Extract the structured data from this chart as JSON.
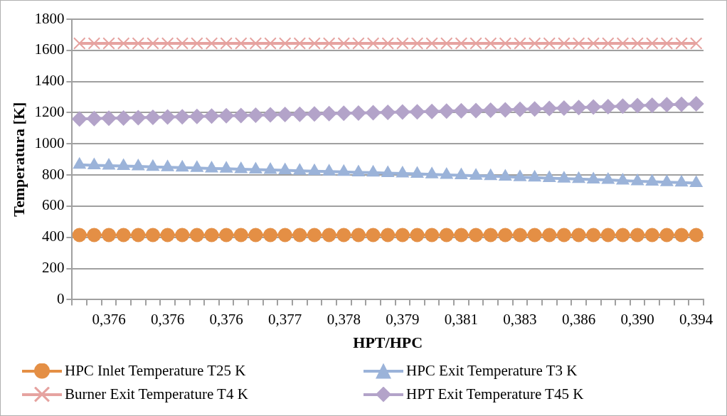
{
  "chart_data": {
    "type": "line",
    "xlabel": "HPT/HPC",
    "ylabel": "Temperatura [K]",
    "categories": [
      null,
      null,
      "0,376",
      null,
      null,
      null,
      "0,376",
      null,
      null,
      null,
      "0,376",
      null,
      null,
      null,
      "0,377",
      null,
      null,
      null,
      "0,378",
      null,
      null,
      null,
      "0,379",
      null,
      null,
      null,
      "0,381",
      null,
      null,
      null,
      "0,383",
      null,
      null,
      null,
      "0,386",
      null,
      null,
      null,
      "0,390",
      null,
      null,
      null,
      "0,394"
    ],
    "ylim": [
      0,
      1800
    ],
    "yticks": [
      0,
      200,
      400,
      600,
      800,
      1000,
      1200,
      1400,
      1600,
      1800
    ],
    "grid": "y",
    "legend": "bottom",
    "series": [
      {
        "name": "HPC Inlet Temperature T25 K",
        "color": "#e48f45",
        "marker": "circle",
        "values": [
          415,
          415,
          415,
          415,
          415,
          415,
          415,
          415,
          415,
          415,
          415,
          415,
          415,
          415,
          415,
          415,
          415,
          415,
          415,
          415,
          415,
          415,
          415,
          415,
          415,
          415,
          415,
          415,
          415,
          415,
          415,
          415,
          415,
          415,
          415,
          415,
          415,
          415,
          415,
          415,
          415,
          415,
          415
        ]
      },
      {
        "name": "HPC Exit Temperature T3 K",
        "color": "#9bb3d9",
        "marker": "triangle",
        "values": [
          865,
          862,
          860,
          857,
          855,
          852,
          850,
          847,
          845,
          842,
          840,
          837,
          835,
          832,
          830,
          827,
          825,
          822,
          820,
          817,
          815,
          812,
          810,
          807,
          804,
          801,
          798,
          795,
          792,
          789,
          786,
          783,
          780,
          777,
          774,
          771,
          768,
          764,
          760,
          757,
          754,
          751,
          748
        ]
      },
      {
        "name": "Burner Exit Temperature T4 K",
        "color": "#e6a3a0",
        "marker": "cross",
        "values": [
          1645,
          1645,
          1645,
          1645,
          1645,
          1645,
          1645,
          1645,
          1645,
          1645,
          1645,
          1645,
          1645,
          1645,
          1645,
          1645,
          1645,
          1645,
          1645,
          1645,
          1645,
          1645,
          1645,
          1645,
          1645,
          1645,
          1645,
          1645,
          1645,
          1645,
          1645,
          1645,
          1645,
          1645,
          1645,
          1645,
          1645,
          1645,
          1645,
          1645,
          1645,
          1645,
          1645
        ]
      },
      {
        "name": "HPT Exit Temperature T45 K",
        "color": "#b3a3c9",
        "marker": "diamond",
        "values": [
          1160,
          1162,
          1164,
          1166,
          1168,
          1170,
          1172,
          1174,
          1176,
          1178,
          1180,
          1182,
          1184,
          1186,
          1188,
          1190,
          1192,
          1194,
          1196,
          1198,
          1200,
          1202,
          1204,
          1206,
          1208,
          1210,
          1212,
          1214,
          1216,
          1218,
          1221,
          1224,
          1227,
          1230,
          1233,
          1236,
          1239,
          1242,
          1245,
          1248,
          1251,
          1254,
          1257
        ]
      }
    ]
  }
}
